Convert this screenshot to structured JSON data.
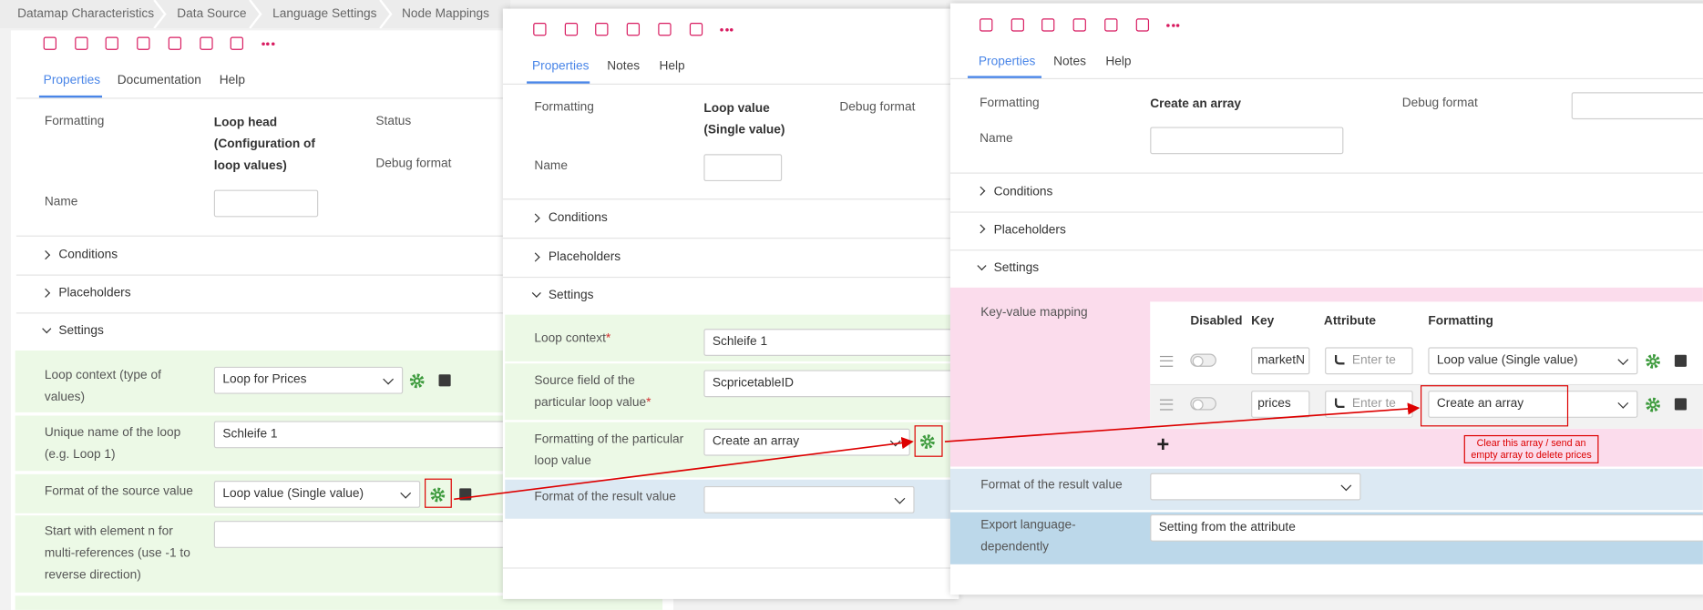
{
  "breadcrumbs": [
    "Datamap Characteristics",
    "Data Source",
    "Language Settings",
    "Node Mappings"
  ],
  "required_mark": "*",
  "panels": [
    {
      "tabs": [
        "Properties",
        "Documentation",
        "Help"
      ],
      "formatting_label": "Formatting",
      "formatting_value": "Loop head (Configuration of loop values)",
      "status_label": "Status",
      "debug_label": "Debug format",
      "name_label": "Name",
      "sections": [
        "Conditions",
        "Placeholders",
        "Settings"
      ],
      "fields": [
        {
          "label": "Loop context (type of values)",
          "value": "Loop for Prices"
        },
        {
          "label": "Unique name of the loop (e.g. Loop 1)",
          "value": "Schleife 1"
        },
        {
          "label": "Format of the source value",
          "value": "Loop value (Single value)"
        },
        {
          "label": "Start with element n for multi-references (use -1 to reverse direction)"
        }
      ]
    },
    {
      "tabs": [
        "Properties",
        "Notes",
        "Help"
      ],
      "formatting_label": "Formatting",
      "formatting_value": "Loop value (Single value)",
      "debug_label": "Debug format",
      "name_label": "Name",
      "sections": [
        "Conditions",
        "Placeholders",
        "Settings"
      ],
      "fields": [
        {
          "label": "Loop context",
          "value": "Schleife 1"
        },
        {
          "label": "Source field of the particular loop value",
          "value": "ScpricetableID"
        },
        {
          "label": "Formatting of the particular loop value",
          "value": "Create an array"
        },
        {
          "label": "Format of the result value"
        }
      ]
    },
    {
      "tabs": [
        "Properties",
        "Notes",
        "Help"
      ],
      "formatting_label": "Formatting",
      "formatting_value": "Create an array",
      "debug_label": "Debug format",
      "name_label": "Name",
      "sections": [
        "Conditions",
        "Placeholders",
        "Settings"
      ],
      "key_value_label": "Key-value mapping",
      "table": {
        "headers": [
          "Disabled",
          "Key",
          "Attribute",
          "Formatting"
        ],
        "rows": [
          {
            "key": "marketN",
            "attribute_placeholder": "Enter te",
            "formatting": "Loop value (Single value)"
          },
          {
            "key": "prices",
            "attribute_placeholder": "Enter te",
            "formatting": "Create an array"
          }
        ]
      },
      "add_label": "+",
      "result_label": "Format of the result value",
      "export_label": "Export language-dependently",
      "export_value": "Setting from the attribute"
    }
  ],
  "annotation": "Clear this array / send an empty array to delete prices"
}
